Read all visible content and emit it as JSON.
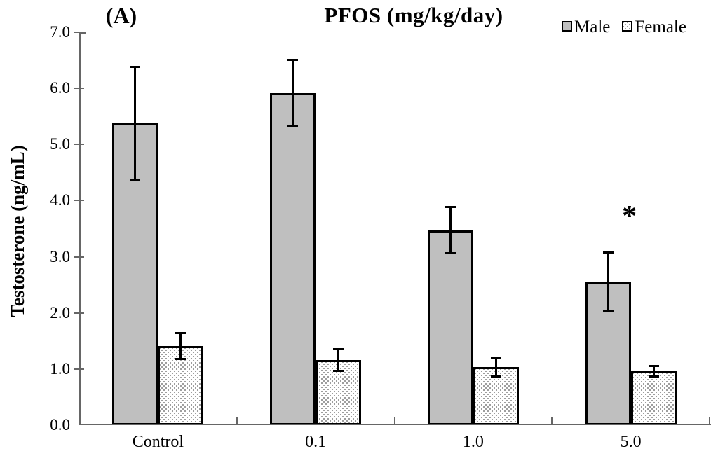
{
  "chart_data": {
    "type": "bar",
    "panel_label": "(A)",
    "title": "PFOS (mg/kg/day)",
    "ylabel": "Testosterone (ng/mL)",
    "xlabel": "",
    "categories": [
      "Control",
      "0.1",
      "1.0",
      "5.0"
    ],
    "series": [
      {
        "name": "Male",
        "values": [
          5.38,
          5.91,
          3.47,
          2.55
        ],
        "errors": [
          1.02,
          0.61,
          0.43,
          0.54
        ],
        "fill": "#bfbfbf",
        "pattern": "solid"
      },
      {
        "name": "Female",
        "values": [
          1.41,
          1.16,
          1.03,
          0.96
        ],
        "errors": [
          0.25,
          0.21,
          0.18,
          0.11
        ],
        "fill": "#ffffff",
        "pattern": "dots"
      }
    ],
    "ylim": [
      0.0,
      7.0
    ],
    "ytick_step": 1.0,
    "ytick_labels": [
      "0.0",
      "1.0",
      "2.0",
      "3.0",
      "4.0",
      "5.0",
      "6.0",
      "7.0"
    ],
    "grid": "off",
    "legend_position": "top-right",
    "error_bars": "both",
    "annotations": [
      {
        "text": "*",
        "meaning": "significant",
        "series": "Male",
        "category": "5.0",
        "category_index": 3,
        "value": 3.72
      }
    ],
    "colors": {
      "male_fill": "#bfbfbf",
      "female_dot": "#8f8f8f",
      "bar_border": "#000000",
      "axis": "#666666",
      "text": "#000000"
    }
  }
}
